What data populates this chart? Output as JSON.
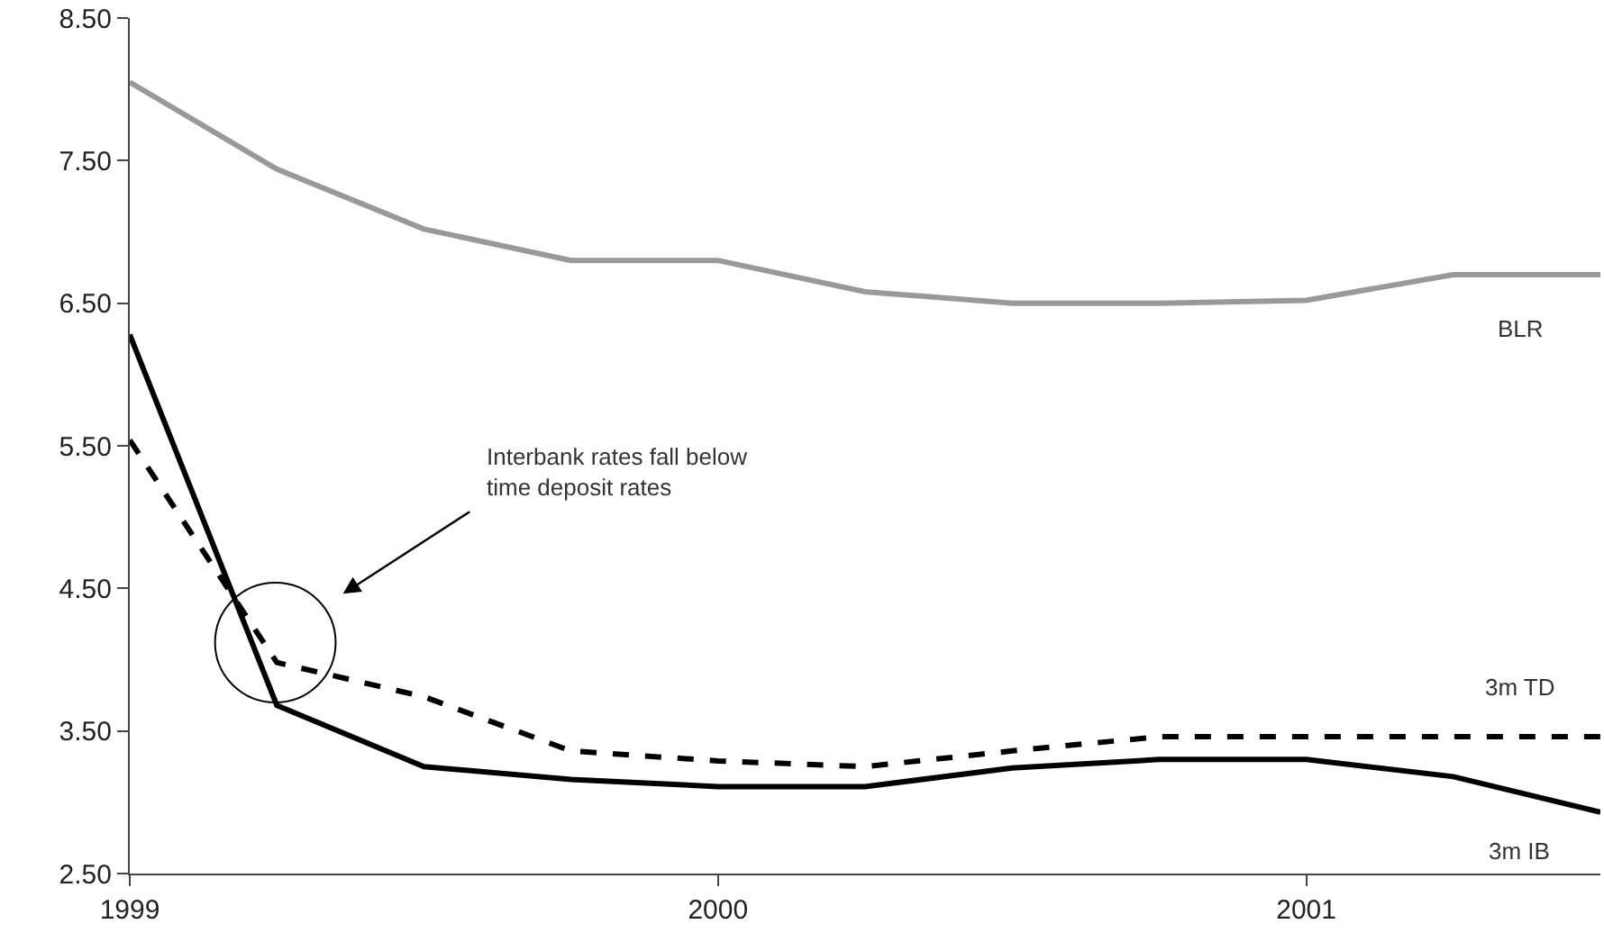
{
  "chart_data": {
    "type": "line",
    "x": [
      1999,
      1999.25,
      1999.5,
      1999.75,
      2000,
      2000.25,
      2000.5,
      2000.75,
      2001,
      2001.25,
      2001.5
    ],
    "series": [
      {
        "name": "BLR",
        "color": "#999999",
        "values": [
          8.05,
          7.44,
          7.02,
          6.8,
          6.8,
          6.58,
          6.5,
          6.5,
          6.52,
          6.7,
          6.7
        ]
      },
      {
        "name": "3m TD",
        "color": "#000000",
        "line_style": "dashed",
        "values": [
          5.54,
          3.98,
          3.74,
          3.36,
          3.29,
          3.25,
          3.36,
          3.46,
          3.46,
          3.46,
          3.46
        ]
      },
      {
        "name": "3m IB",
        "color": "#000000",
        "values": [
          6.28,
          3.68,
          3.25,
          3.16,
          3.11,
          3.11,
          3.24,
          3.3,
          3.3,
          3.18,
          2.93
        ]
      }
    ],
    "xlim": [
      1999,
      2001.5
    ],
    "xticks": [
      1999,
      2000,
      2001
    ],
    "ylim": [
      2.5,
      8.5
    ],
    "yticks": [
      {
        "value": 2.5,
        "label": "2.50"
      },
      {
        "value": 3.5,
        "label": "3.50"
      },
      {
        "value": 4.5,
        "label": "4.50"
      },
      {
        "value": 5.5,
        "label": "5.50"
      },
      {
        "value": 6.5,
        "label": "6.50"
      },
      {
        "value": 7.5,
        "label": "7.50"
      },
      {
        "value": 8.5,
        "label": "8.50"
      }
    ],
    "legend": false,
    "annotations": [
      "Interbank rates fall below\ntime deposit rates"
    ]
  }
}
